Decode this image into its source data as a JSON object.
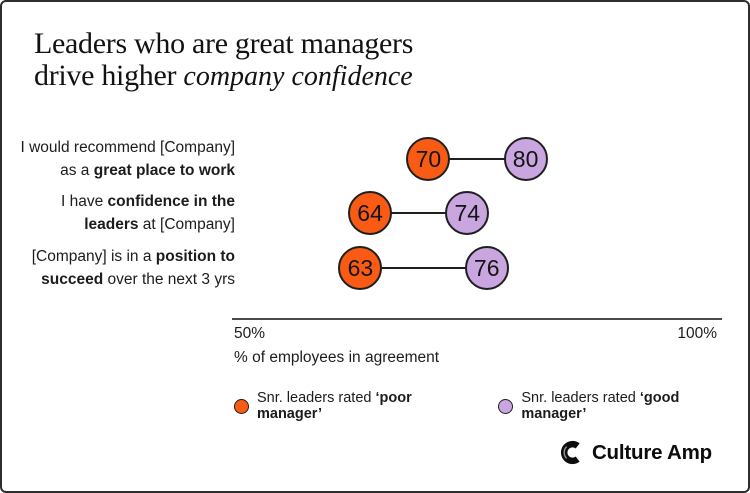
{
  "title": {
    "line1": "Leaders who are great managers",
    "line2_prefix": "drive higher ",
    "line2_script": "company confidence"
  },
  "chart_data": {
    "type": "dumbbell",
    "title": "Leaders who are great managers drive higher company confidence",
    "x_axis": {
      "min": 50,
      "max": 100,
      "ticks": [
        "50%",
        "100%"
      ],
      "label": "% of employees in agreement"
    },
    "series": [
      {
        "key": "poor",
        "name": "Snr. leaders rated ‘poor manager’",
        "color": "#F95B15"
      },
      {
        "key": "good",
        "name": "Snr. leaders rated ‘good manager’",
        "color": "#C9A6DF"
      }
    ],
    "rows": [
      {
        "label_segments": [
          {
            "text": "I would recommend [Company]\nas a ",
            "bold": false
          },
          {
            "text": "great place to work",
            "bold": true
          }
        ],
        "values": {
          "poor": 70,
          "good": 80
        }
      },
      {
        "label_segments": [
          {
            "text": "I have ",
            "bold": false
          },
          {
            "text": "confidence in the\nleaders",
            "bold": true
          },
          {
            "text": " at [Company]",
            "bold": false
          }
        ],
        "values": {
          "poor": 64,
          "good": 74
        }
      },
      {
        "label_segments": [
          {
            "text": "[Company] is in a ",
            "bold": false
          },
          {
            "text": "position to\nsucceed",
            "bold": true
          },
          {
            "text": " over the next 3 yrs",
            "bold": false
          }
        ],
        "values": {
          "poor": 63,
          "good": 76
        }
      }
    ]
  },
  "legend": {
    "items": [
      {
        "prefix": "Snr. leaders rated ",
        "emphasis": "‘poor manager’"
      },
      {
        "prefix": "Snr. leaders rated ",
        "emphasis": "‘good manager’"
      }
    ]
  },
  "footer": {
    "brand": "Culture Amp"
  }
}
